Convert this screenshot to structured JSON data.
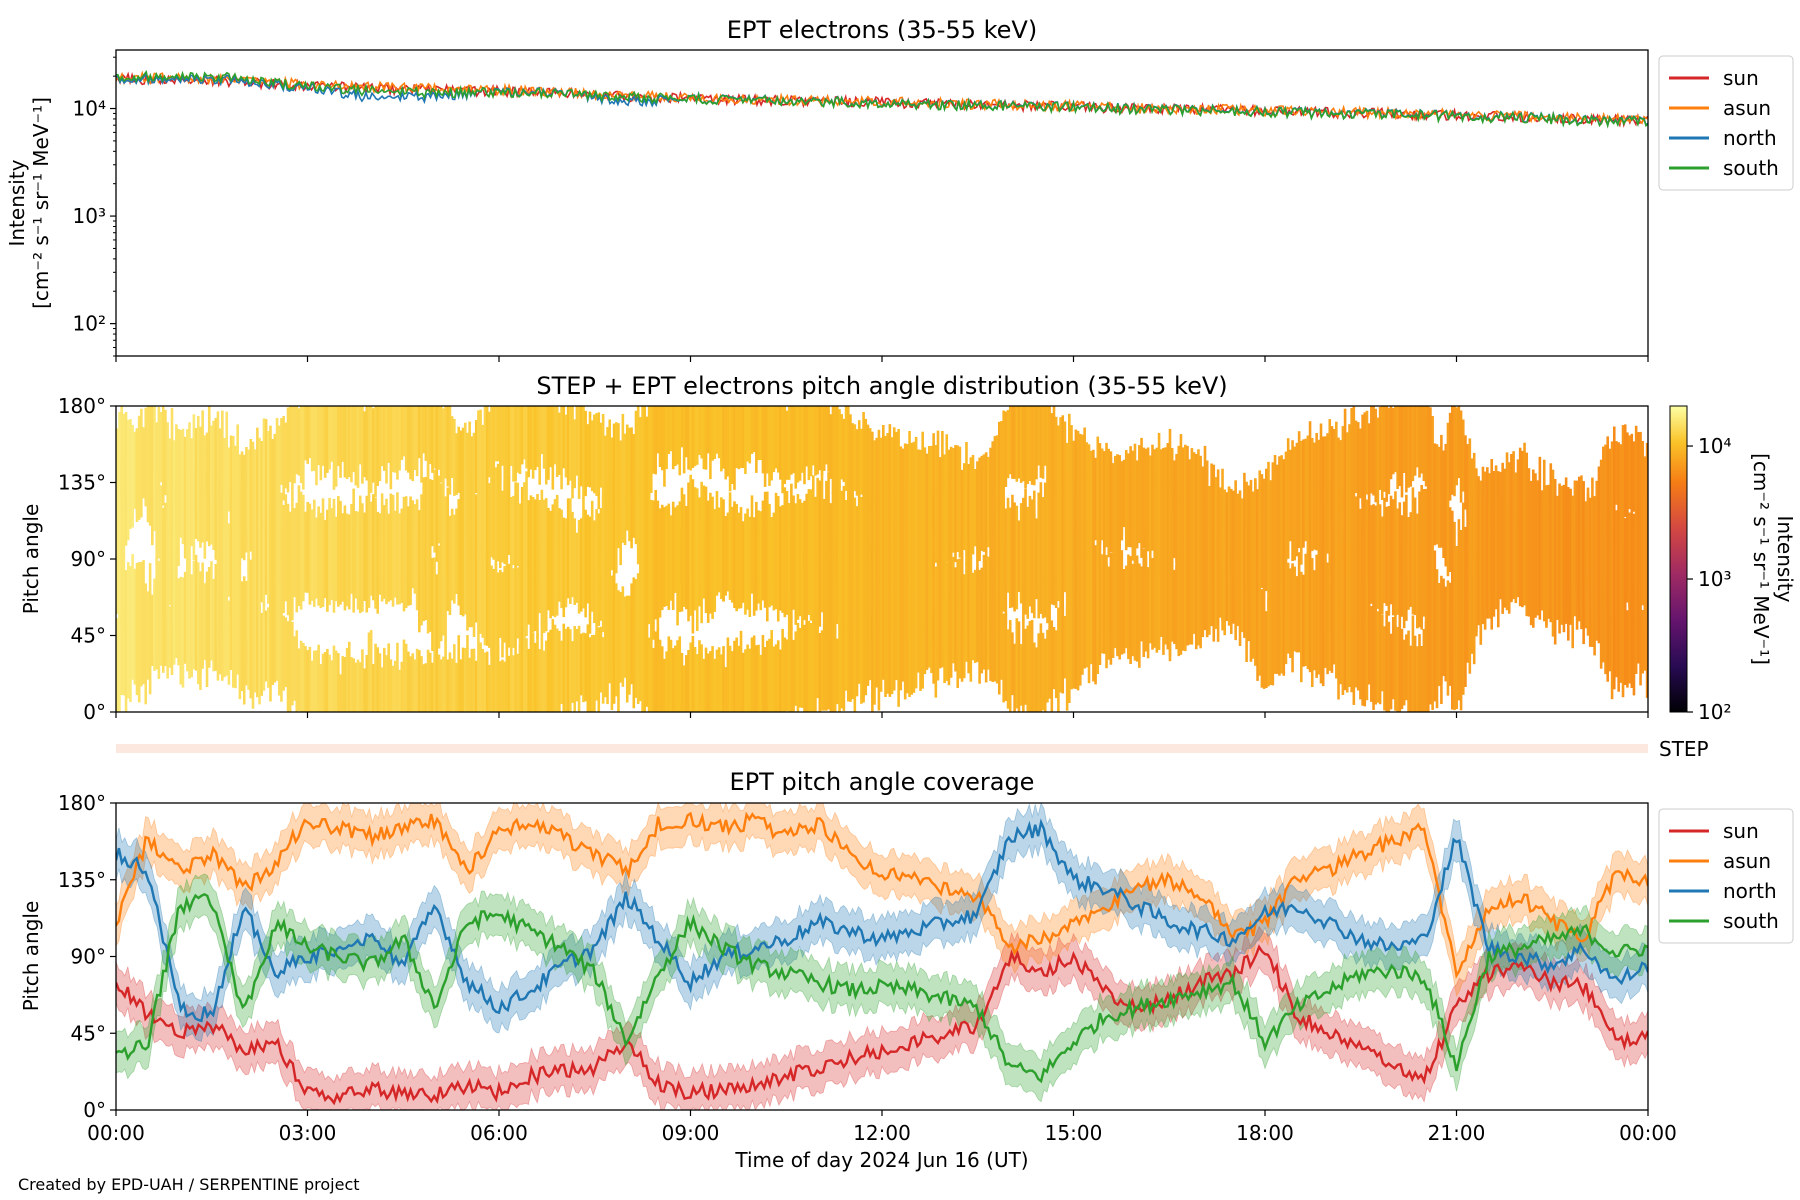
{
  "chart_data": [
    {
      "type": "line",
      "title": "EPT electrons (35-55 keV)",
      "ylabel_line1": "Intensity",
      "ylabel_line2": "[cm⁻² s⁻¹ sr⁻¹ MeV⁻¹]",
      "yscale": "log",
      "ylim": [
        50,
        35000
      ],
      "yticks": [
        {
          "value": 100,
          "label": "10²"
        },
        {
          "value": 1000,
          "label": "10³"
        },
        {
          "value": 10000,
          "label": "10⁴"
        }
      ],
      "xlim_hours": [
        0,
        24
      ],
      "legend_position": "outside-right-top",
      "series": [
        {
          "name": "sun",
          "color": "#d62728",
          "x": [
            0,
            1,
            2,
            3,
            4,
            5,
            6,
            7,
            8,
            9,
            10,
            11,
            12,
            13,
            14,
            15,
            16,
            17,
            18,
            19,
            20,
            21,
            22,
            23,
            24
          ],
          "values": [
            19000,
            18500,
            17500,
            16500,
            15500,
            15000,
            14500,
            14000,
            13000,
            12500,
            12000,
            11800,
            11500,
            11000,
            10800,
            10500,
            10000,
            9800,
            9500,
            9200,
            9000,
            8700,
            8400,
            8000,
            7800
          ]
        },
        {
          "name": "asun",
          "color": "#ff7f0e",
          "x": [
            0,
            1,
            2,
            3,
            4,
            5,
            6,
            7,
            8,
            9,
            10,
            11,
            12,
            13,
            14,
            15,
            16,
            17,
            18,
            19,
            20,
            21,
            22,
            23,
            24
          ],
          "values": [
            19500,
            19000,
            18000,
            17000,
            16000,
            15500,
            15000,
            14200,
            13200,
            12600,
            12100,
            11900,
            11600,
            11100,
            10900,
            10600,
            10100,
            9900,
            9600,
            9300,
            9100,
            8800,
            8500,
            8100,
            7900
          ]
        },
        {
          "name": "north",
          "color": "#1f77b4",
          "x": [
            0,
            1,
            2,
            3,
            4,
            5,
            6,
            7,
            8,
            9,
            10,
            11,
            12,
            13,
            14,
            15,
            16,
            17,
            18,
            19,
            20,
            21,
            22,
            23,
            24
          ],
          "values": [
            19000,
            19500,
            18000,
            15500,
            12500,
            13000,
            14500,
            13800,
            11500,
            12400,
            12000,
            11800,
            11400,
            11000,
            10700,
            10400,
            10000,
            9700,
            9400,
            9100,
            8900,
            8600,
            8300,
            7900,
            7700
          ]
        },
        {
          "name": "south",
          "color": "#2ca02c",
          "x": [
            0,
            1,
            2,
            3,
            4,
            5,
            6,
            7,
            8,
            9,
            10,
            11,
            12,
            13,
            14,
            15,
            16,
            17,
            18,
            19,
            20,
            21,
            22,
            23,
            24
          ],
          "values": [
            19800,
            20500,
            19000,
            16000,
            14500,
            14000,
            14200,
            13600,
            12800,
            12300,
            11900,
            11700,
            11300,
            10900,
            10600,
            10300,
            9900,
            9600,
            9300,
            9000,
            8800,
            8500,
            8200,
            7800,
            7600
          ]
        }
      ]
    },
    {
      "type": "heatmap",
      "title": "STEP + EPT electrons pitch angle distribution (35-55 keV)",
      "ylabel": "Pitch angle",
      "ylim": [
        0,
        180
      ],
      "yticks": [
        {
          "value": 0,
          "label": "0°"
        },
        {
          "value": 45,
          "label": "45°"
        },
        {
          "value": 90,
          "label": "90°"
        },
        {
          "value": 135,
          "label": "135°"
        },
        {
          "value": 180,
          "label": "180°"
        }
      ],
      "xlim_hours": [
        0,
        24
      ],
      "colormap": "inferno",
      "colorbar": {
        "label_line1": "Intensity",
        "label_line2": "[cm⁻² s⁻¹ sr⁻¹ MeV⁻¹]",
        "scale": "log",
        "range": [
          100,
          20000
        ],
        "ticks": [
          {
            "value": 100,
            "label": "10²"
          },
          {
            "value": 1000,
            "label": "10³"
          },
          {
            "value": 10000,
            "label": "10⁴"
          }
        ]
      },
      "intensity_hours": [
        0,
        2,
        3,
        5,
        6,
        8,
        12,
        16,
        20,
        24
      ],
      "intensity_values": [
        19000,
        17500,
        16500,
        15000,
        14500,
        13000,
        11500,
        10000,
        9000,
        7800
      ]
    },
    {
      "type": "bar",
      "label": "STEP",
      "note": "thin STEP coverage strip",
      "color": "#fde8e0"
    },
    {
      "type": "line",
      "title": "EPT pitch angle coverage",
      "ylabel": "Pitch angle",
      "ylim": [
        0,
        180
      ],
      "yticks": [
        {
          "value": 0,
          "label": "0°"
        },
        {
          "value": 45,
          "label": "45°"
        },
        {
          "value": 90,
          "label": "90°"
        },
        {
          "value": 135,
          "label": "135°"
        },
        {
          "value": 180,
          "label": "180°"
        }
      ],
      "xlim_hours": [
        0,
        24
      ],
      "xlabel": "Time of day 2024 Jun 16 (UT)",
      "xticks": [
        "00:00",
        "03:00",
        "06:00",
        "09:00",
        "12:00",
        "15:00",
        "18:00",
        "21:00",
        "00:00"
      ],
      "band_halfwidth_deg": 12,
      "legend_position": "outside-right-top",
      "series": [
        {
          "name": "sun",
          "color": "#d62728",
          "x": [
            0,
            0.5,
            1,
            1.5,
            2,
            2.5,
            3,
            3.5,
            4,
            4.5,
            5,
            5.5,
            6,
            6.5,
            7,
            7.5,
            8,
            8.5,
            9,
            9.5,
            10,
            10.5,
            11,
            11.5,
            12,
            12.5,
            13,
            13.5,
            14,
            14.5,
            15,
            15.5,
            16,
            16.5,
            17,
            17.5,
            18,
            18.5,
            19,
            19.5,
            20,
            20.5,
            21,
            21.5,
            22,
            22.5,
            23,
            23.5,
            24
          ],
          "values": [
            75,
            55,
            45,
            50,
            35,
            40,
            10,
            8,
            12,
            10,
            8,
            15,
            10,
            20,
            22,
            25,
            40,
            15,
            10,
            12,
            15,
            20,
            25,
            30,
            35,
            40,
            45,
            50,
            90,
            80,
            90,
            70,
            60,
            65,
            75,
            80,
            95,
            55,
            45,
            35,
            28,
            18,
            60,
            80,
            85,
            75,
            72,
            40,
            45
          ]
        },
        {
          "name": "asun",
          "color": "#ff7f0e",
          "x": [
            0,
            0.5,
            1,
            1.5,
            2,
            2.5,
            3,
            3.5,
            4,
            4.5,
            5,
            5.5,
            6,
            6.5,
            7,
            7.5,
            8,
            8.5,
            9,
            9.5,
            10,
            10.5,
            11,
            11.5,
            12,
            12.5,
            13,
            13.5,
            14,
            14.5,
            15,
            15.5,
            16,
            16.5,
            17,
            17.5,
            18,
            18.5,
            19,
            19.5,
            20,
            20.5,
            21,
            21.5,
            22,
            22.5,
            23,
            23.5,
            24
          ],
          "values": [
            110,
            160,
            140,
            150,
            130,
            145,
            170,
            165,
            160,
            165,
            170,
            140,
            165,
            168,
            160,
            150,
            140,
            168,
            170,
            165,
            170,
            160,
            168,
            150,
            140,
            135,
            130,
            125,
            95,
            100,
            110,
            120,
            130,
            135,
            125,
            100,
            110,
            135,
            140,
            150,
            158,
            165,
            80,
            120,
            125,
            110,
            100,
            140,
            135
          ]
        },
        {
          "name": "north",
          "color": "#1f77b4",
          "x": [
            0,
            0.5,
            1,
            1.5,
            2,
            2.5,
            3,
            3.5,
            4,
            4.5,
            5,
            5.5,
            6,
            6.5,
            7,
            7.5,
            8,
            8.5,
            9,
            9.5,
            10,
            10.5,
            11,
            11.5,
            12,
            12.5,
            13,
            13.5,
            14,
            14.5,
            15,
            15.5,
            16,
            16.5,
            17,
            17.5,
            18,
            18.5,
            19,
            19.5,
            20,
            20.5,
            21,
            21.5,
            22,
            22.5,
            23,
            23.5,
            24
          ],
          "values": [
            150,
            140,
            60,
            55,
            120,
            80,
            90,
            95,
            100,
            85,
            120,
            75,
            60,
            70,
            85,
            95,
            125,
            100,
            75,
            90,
            95,
            100,
            110,
            105,
            100,
            105,
            110,
            115,
            160,
            165,
            135,
            130,
            120,
            110,
            105,
            100,
            115,
            120,
            110,
            100,
            95,
            100,
            160,
            95,
            90,
            85,
            95,
            75,
            85
          ]
        },
        {
          "name": "south",
          "color": "#2ca02c",
          "x": [
            0,
            0.5,
            1,
            1.5,
            2,
            2.5,
            3,
            3.5,
            4,
            4.5,
            5,
            5.5,
            6,
            6.5,
            7,
            7.5,
            8,
            8.5,
            9,
            9.5,
            10,
            10.5,
            11,
            11.5,
            12,
            12.5,
            13,
            13.5,
            14,
            14.5,
            15,
            15.5,
            16,
            16.5,
            17,
            17.5,
            18,
            18.5,
            19,
            19.5,
            20,
            20.5,
            21,
            21.5,
            22,
            22.5,
            23,
            23.5,
            24
          ],
          "values": [
            30,
            40,
            120,
            125,
            55,
            110,
            95,
            90,
            85,
            100,
            60,
            110,
            115,
            105,
            95,
            80,
            40,
            80,
            110,
            95,
            85,
            80,
            75,
            70,
            72,
            70,
            65,
            60,
            25,
            20,
            40,
            55,
            60,
            65,
            70,
            75,
            40,
            60,
            70,
            80,
            82,
            78,
            25,
            90,
            95,
            100,
            105,
            92,
            95
          ]
        }
      ]
    }
  ],
  "footer": "Created by EPD-UAH / SERPENTINE project",
  "strip_label": "STEP"
}
